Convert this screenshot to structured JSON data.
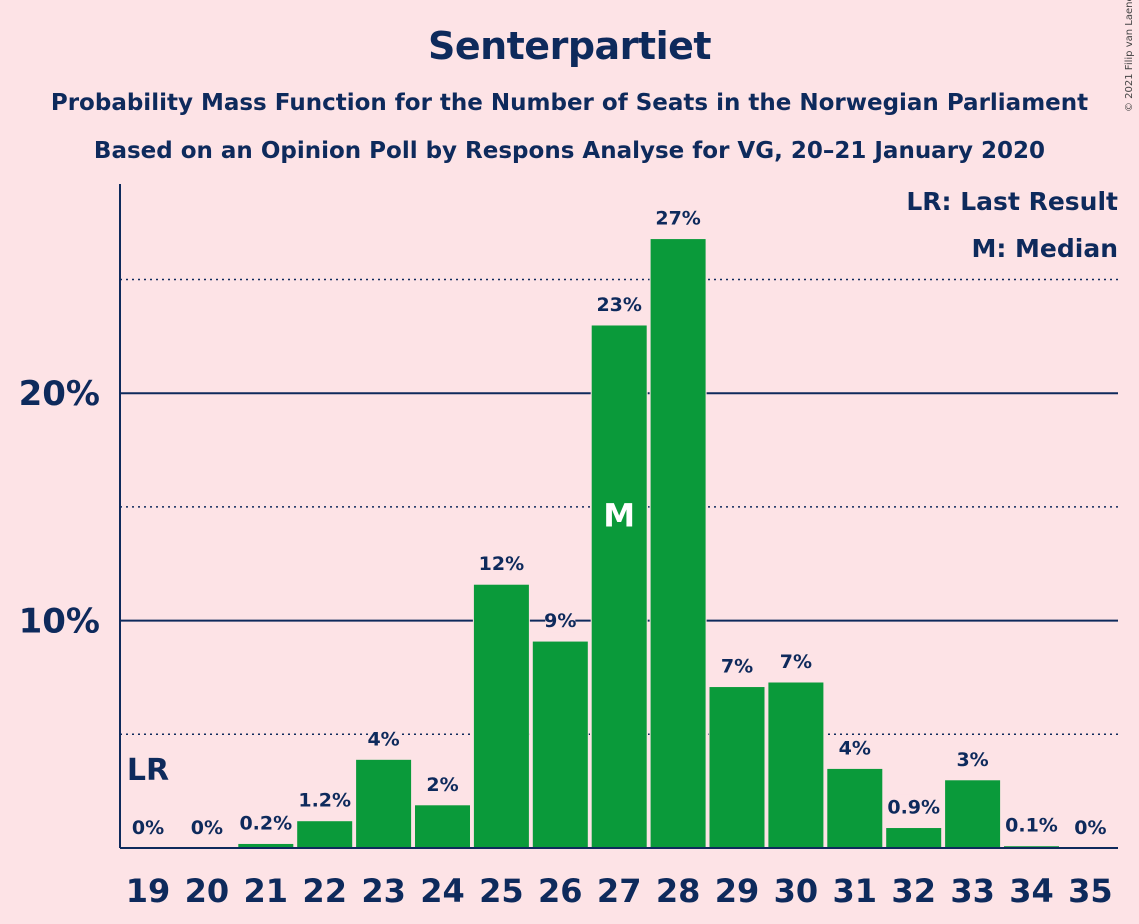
{
  "title": "Senterpartiet",
  "subtitle_line1": "Probability Mass Function for the Number of Seats in the Norwegian Parliament",
  "subtitle_line2": "Based on an Opinion Poll by Respons Analyse for VG, 20–21 January 2020",
  "copyright": "© 2021 Filip van Laenen",
  "colors": {
    "background": "#fde3e6",
    "bar": "#0a9a3a",
    "text": "#0e2a5c",
    "gridline": "#0e2a5c"
  },
  "chart_data": {
    "type": "bar",
    "categories": [
      "19",
      "20",
      "21",
      "22",
      "23",
      "24",
      "25",
      "26",
      "27",
      "28",
      "29",
      "30",
      "31",
      "32",
      "33",
      "34",
      "35"
    ],
    "values": [
      0,
      0,
      0.2,
      1.2,
      3.9,
      1.9,
      11.6,
      9.1,
      23.0,
      26.8,
      7.1,
      7.3,
      3.5,
      0.9,
      3.0,
      0.1,
      0
    ],
    "data_labels": [
      "0%",
      "0%",
      "0.2%",
      "1.2%",
      "4%",
      "2%",
      "12%",
      "9%",
      "23%",
      "27%",
      "7%",
      "7%",
      "4%",
      "0.9%",
      "3%",
      "0.1%",
      "0%"
    ],
    "ylim": [
      0,
      29.2
    ],
    "y_ticks": [
      {
        "value": 10,
        "label": "10%"
      },
      {
        "value": 20,
        "label": "20%"
      }
    ],
    "minor_gridlines": [
      5,
      15,
      25
    ],
    "annotations": {
      "last_result": {
        "category": "19",
        "label": "LR"
      },
      "median": {
        "category": "27",
        "label": "M"
      }
    },
    "legend": {
      "position": "top-right",
      "entries": [
        "LR: Last Result",
        "M: Median"
      ]
    }
  }
}
